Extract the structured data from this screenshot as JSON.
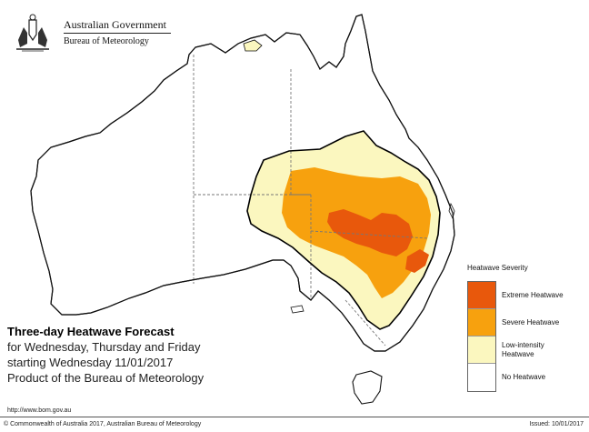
{
  "header": {
    "government": "Australian Government",
    "agency": "Bureau of Meteorology"
  },
  "title_block": {
    "title": "Three-day Heatwave Forecast",
    "line2": "for Wednesday, Thursday and Friday",
    "line3": "starting Wednesday 11/01/2017",
    "line4": "Product of the Bureau of Meteorology"
  },
  "url": "http://www.bom.gov.au",
  "footer": {
    "copyright": "© Commonwealth of Australia 2017, Australian Bureau of Meteorology",
    "issued": "Issued: 10/01/2017"
  },
  "legend": {
    "title": "Heatwave Severity",
    "items": [
      {
        "label": "Extreme Heatwave",
        "color": "#e8580c"
      },
      {
        "label": "Severe Heatwave",
        "color": "#f7a10e"
      },
      {
        "label": "Low-intensity Heatwave",
        "color": "#fbf7bf"
      },
      {
        "label": "No Heatwave",
        "color": "#ffffff"
      }
    ]
  },
  "colors": {
    "land": "#ffffff",
    "coast": "#111111",
    "state_border": "#777777"
  }
}
